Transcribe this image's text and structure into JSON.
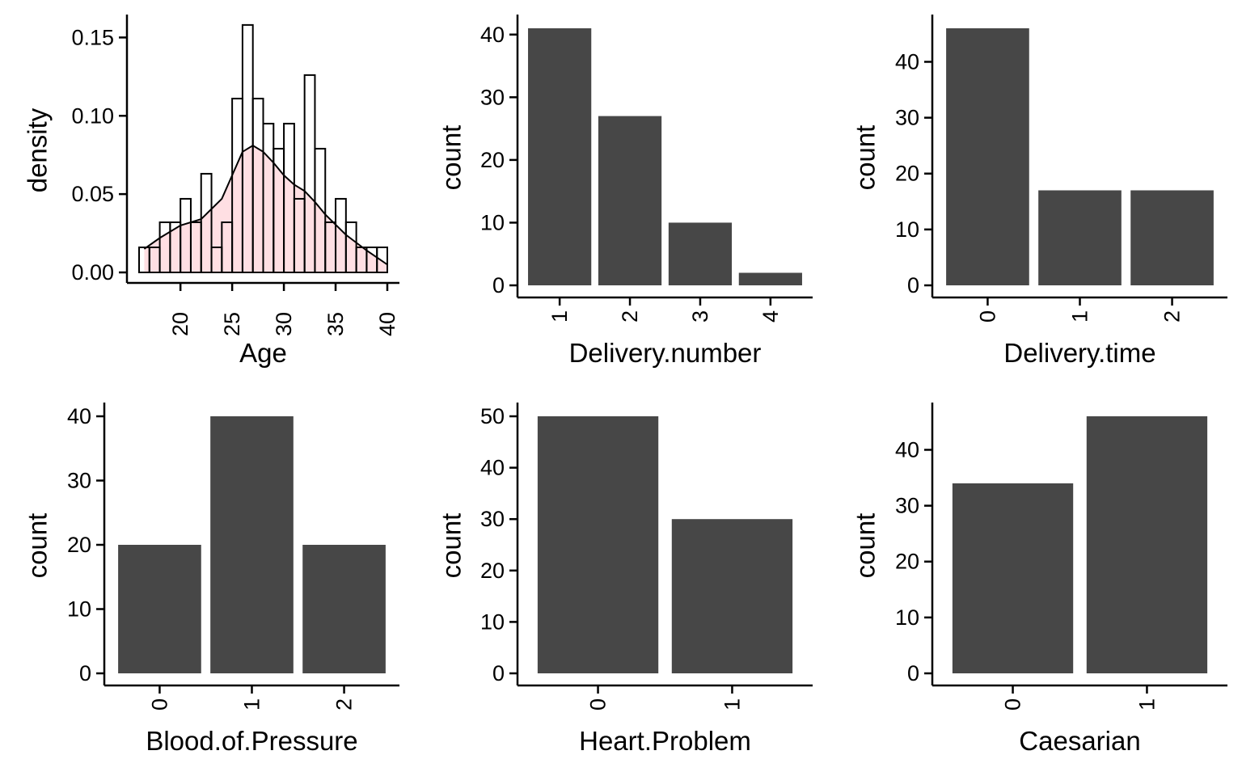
{
  "chart_data": [
    {
      "type": "histogram",
      "xlabel": "Age",
      "ylabel": "density",
      "xlim": [
        13.5,
        41.5
      ],
      "ylim": [
        0,
        0.16
      ],
      "xticks": [
        20,
        25,
        30,
        35,
        40
      ],
      "yticks": [
        0.0,
        0.05,
        0.1,
        0.15
      ],
      "ytick_labels": [
        "0.00",
        "0.05",
        "0.10",
        "0.15"
      ],
      "bin_width": 1,
      "bins": [
        {
          "x": 16,
          "y": 0.016
        },
        {
          "x": 17,
          "y": 0.016
        },
        {
          "x": 18,
          "y": 0.032
        },
        {
          "x": 19,
          "y": 0.032
        },
        {
          "x": 20,
          "y": 0.047
        },
        {
          "x": 21,
          "y": 0.032
        },
        {
          "x": 22,
          "y": 0.063
        },
        {
          "x": 23,
          "y": 0.016
        },
        {
          "x": 24,
          "y": 0.032
        },
        {
          "x": 25,
          "y": 0.111
        },
        {
          "x": 26,
          "y": 0.158
        },
        {
          "x": 27,
          "y": 0.111
        },
        {
          "x": 28,
          "y": 0.095
        },
        {
          "x": 29,
          "y": 0.079
        },
        {
          "x": 30,
          "y": 0.095
        },
        {
          "x": 31,
          "y": 0.047
        },
        {
          "x": 32,
          "y": 0.126
        },
        {
          "x": 33,
          "y": 0.079
        },
        {
          "x": 34,
          "y": 0.032
        },
        {
          "x": 35,
          "y": 0.047
        },
        {
          "x": 36,
          "y": 0.032
        },
        {
          "x": 37,
          "y": 0.016
        },
        {
          "x": 38,
          "y": 0.016
        },
        {
          "x": 39,
          "y": 0.016
        }
      ],
      "density": {
        "x": [
          16.5,
          18,
          20,
          22,
          24,
          25,
          26,
          27,
          28,
          29,
          30,
          31,
          32,
          33,
          34,
          36,
          38,
          40
        ],
        "y": [
          0.015,
          0.022,
          0.03,
          0.034,
          0.047,
          0.062,
          0.077,
          0.081,
          0.077,
          0.07,
          0.062,
          0.056,
          0.052,
          0.045,
          0.037,
          0.024,
          0.014,
          0.005
        ]
      },
      "fill_color": "#ffdfe3"
    },
    {
      "type": "bar",
      "xlabel": "Delivery.number",
      "ylabel": "count",
      "categories": [
        "1",
        "2",
        "3",
        "4"
      ],
      "values": [
        41,
        27,
        10,
        2
      ],
      "ylim": [
        0,
        41
      ],
      "yticks": [
        0,
        10,
        20,
        30,
        40
      ],
      "bar_color": "#474747"
    },
    {
      "type": "bar",
      "xlabel": "Delivery.time",
      "ylabel": "count",
      "categories": [
        "0",
        "1",
        "2"
      ],
      "values": [
        46,
        17,
        17
      ],
      "ylim": [
        0,
        46
      ],
      "yticks": [
        0,
        10,
        20,
        30,
        40
      ],
      "bar_color": "#474747"
    },
    {
      "type": "bar",
      "xlabel": "Blood.of.Pressure",
      "ylabel": "count",
      "categories": [
        "0",
        "1",
        "2"
      ],
      "values": [
        20,
        40,
        20
      ],
      "ylim": [
        0,
        40
      ],
      "yticks": [
        0,
        10,
        20,
        30,
        40
      ],
      "bar_color": "#474747"
    },
    {
      "type": "bar",
      "xlabel": "Heart.Problem",
      "ylabel": "count",
      "categories": [
        "0",
        "1"
      ],
      "values": [
        50,
        30
      ],
      "ylim": [
        0,
        50
      ],
      "yticks": [
        0,
        10,
        20,
        30,
        40,
        50
      ],
      "bar_color": "#474747"
    },
    {
      "type": "bar",
      "xlabel": "Caesarian",
      "ylabel": "count",
      "categories": [
        "0",
        "1"
      ],
      "values": [
        34,
        46
      ],
      "ylim": [
        0,
        46
      ],
      "yticks": [
        0,
        10,
        20,
        30,
        40
      ],
      "bar_color": "#474747"
    }
  ]
}
